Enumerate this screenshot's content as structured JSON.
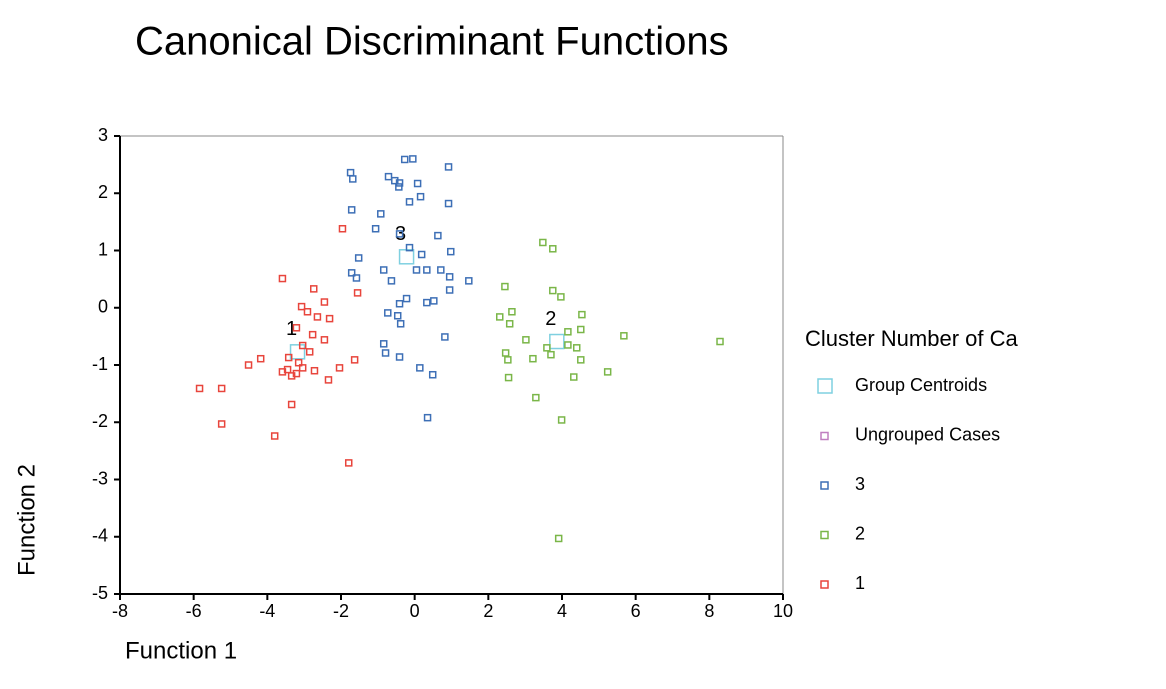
{
  "chart_data": {
    "type": "scatter",
    "title": "Canonical Discriminant Functions",
    "x_label": "Function 1",
    "y_label": "Function 2",
    "legend_title": "Cluster Number of Ca",
    "legend": "right",
    "xlim": [
      -8,
      10
    ],
    "xticks": [
      -8,
      -6,
      -4,
      -2,
      0,
      2,
      4,
      6,
      8,
      10
    ],
    "ylim": [
      -5,
      3
    ],
    "yticks": [
      -5,
      -4,
      -3,
      -2,
      -1,
      0,
      1,
      2,
      3
    ],
    "series": [
      {
        "name": "Group Centroids",
        "color": "#7fd0e0",
        "x": [
          -3.18,
          3.86,
          -0.22
        ],
        "y": [
          -0.77,
          -0.59,
          0.89
        ],
        "labels": [
          "1",
          "2",
          "3"
        ]
      },
      {
        "name": "Ungrouped Cases",
        "color": "#c07fc0",
        "x": [],
        "y": []
      },
      {
        "name": "3",
        "color": "#3d6fb6",
        "x": [
          -1.74,
          -1.68,
          -0.71,
          -0.54,
          -0.41,
          -0.43,
          -0.27,
          -0.05,
          0.92,
          0.08,
          -0.14,
          0.16,
          0.92,
          -1.71,
          -0.92,
          -1.06,
          -0.41,
          0.63,
          -0.14,
          -1.52,
          -0.84,
          -1.71,
          -1.58,
          -0.63,
          0.19,
          0.98,
          0.05,
          0.33,
          0.71,
          0.95,
          1.47,
          0.95,
          -0.22,
          -0.41,
          0.52,
          0.33,
          -0.46,
          -0.73,
          -0.38,
          0.82,
          -0.84,
          -0.79,
          -0.41,
          0.14,
          0.49,
          0.35
        ],
        "y": [
          2.36,
          2.25,
          2.29,
          2.22,
          2.18,
          2.11,
          2.59,
          2.6,
          2.46,
          2.17,
          1.85,
          1.94,
          1.82,
          1.71,
          1.64,
          1.38,
          1.29,
          1.26,
          1.05,
          0.87,
          0.66,
          0.61,
          0.52,
          0.47,
          0.93,
          0.98,
          0.66,
          0.66,
          0.66,
          0.54,
          0.47,
          0.31,
          0.16,
          0.07,
          0.12,
          0.09,
          -0.14,
          -0.09,
          -0.28,
          -0.51,
          -0.63,
          -0.79,
          -0.86,
          -1.05,
          -1.17,
          -1.92
        ]
      },
      {
        "name": "2",
        "color": "#7ab648",
        "x": [
          2.45,
          3.48,
          3.75,
          3.75,
          3.97,
          2.31,
          2.64,
          2.58,
          3.02,
          4.54,
          4.51,
          4.16,
          4.16,
          3.59,
          3.7,
          4.4,
          4.51,
          5.68,
          8.29,
          2.47,
          2.53,
          3.21,
          2.55,
          5.24,
          4.32,
          3.29,
          3.99,
          3.91
        ],
        "y": [
          0.37,
          1.14,
          1.03,
          0.3,
          0.19,
          -0.16,
          -0.07,
          -0.28,
          -0.56,
          -0.12,
          -0.38,
          -0.42,
          -0.65,
          -0.7,
          -0.82,
          -0.7,
          -0.91,
          -0.49,
          -0.59,
          -0.79,
          -0.91,
          -0.89,
          -1.22,
          -1.12,
          -1.21,
          -1.57,
          -1.96,
          -4.03
        ]
      },
      {
        "name": "1",
        "color": "#e8453c",
        "x": [
          -1.96,
          -3.59,
          -2.74,
          -2.45,
          -3.07,
          -2.91,
          -2.64,
          -2.31,
          -3.21,
          -1.55,
          -2.77,
          -2.45,
          -3.04,
          -2.85,
          -3.42,
          -4.18,
          -1.63,
          -3.15,
          -4.51,
          -3.04,
          -2.04,
          -3.45,
          -2.72,
          -3.21,
          -3.59,
          -3.34,
          -2.34,
          -5.84,
          -5.24,
          -3.34,
          -5.24,
          -3.8,
          -1.79
        ],
        "y": [
          1.38,
          0.51,
          0.33,
          0.1,
          0.02,
          -0.07,
          -0.16,
          -0.19,
          -0.35,
          0.26,
          -0.47,
          -0.56,
          -0.66,
          -0.77,
          -0.87,
          -0.89,
          -0.91,
          -0.96,
          -1.0,
          -1.05,
          -1.05,
          -1.08,
          -1.1,
          -1.15,
          -1.12,
          -1.19,
          -1.26,
          -1.41,
          -1.41,
          -1.69,
          -2.03,
          -2.24,
          -2.71
        ]
      }
    ]
  }
}
